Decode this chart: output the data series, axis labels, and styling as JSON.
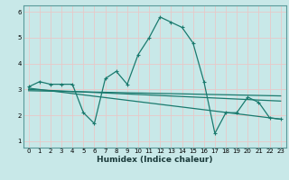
{
  "xlabel": "Humidex (Indice chaleur)",
  "background_color": "#c8e8e8",
  "grid_color": "#e8c8c8",
  "line_color": "#1a7a6e",
  "xlim": [
    -0.5,
    23.5
  ],
  "ylim": [
    0.75,
    6.25
  ],
  "xticks": [
    0,
    1,
    2,
    3,
    4,
    5,
    6,
    7,
    8,
    9,
    10,
    11,
    12,
    13,
    14,
    15,
    16,
    17,
    18,
    19,
    20,
    21,
    22,
    23
  ],
  "yticks": [
    1,
    2,
    3,
    4,
    5,
    6
  ],
  "series1_x": [
    0,
    1,
    2,
    3,
    4,
    5,
    6,
    7,
    8,
    9,
    10,
    11,
    12,
    13,
    14,
    15,
    16,
    17,
    18,
    19,
    20,
    21,
    22,
    23
  ],
  "series1_y": [
    3.1,
    3.3,
    3.2,
    3.2,
    3.2,
    2.1,
    1.68,
    3.42,
    3.7,
    3.2,
    4.35,
    5.0,
    5.8,
    5.6,
    5.4,
    4.8,
    3.3,
    1.3,
    2.1,
    2.1,
    2.7,
    2.5,
    1.9,
    1.85
  ],
  "series2_x": [
    0,
    23
  ],
  "series2_y": [
    3.05,
    1.85
  ],
  "series3_x": [
    0,
    23
  ],
  "series3_y": [
    3.0,
    2.55
  ],
  "series4_x": [
    0,
    23
  ],
  "series4_y": [
    2.95,
    2.75
  ]
}
